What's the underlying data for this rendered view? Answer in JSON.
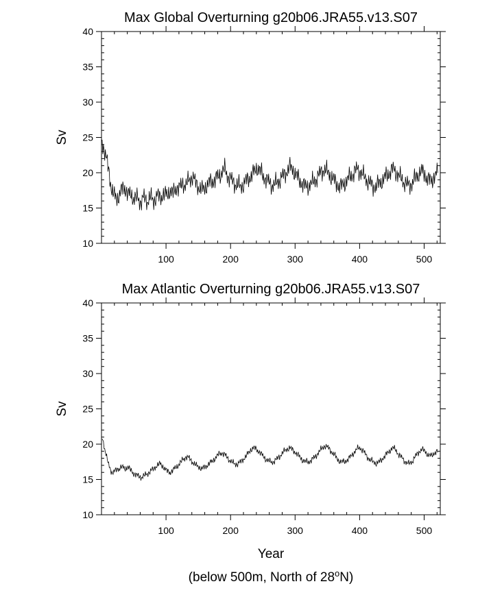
{
  "chart_data": [
    {
      "type": "line",
      "title": "Max Global Overturning g20b06.JRA55.v13.S07",
      "xlabel": "",
      "ylabel": "Sv",
      "xlim": [
        0,
        525
      ],
      "ylim": [
        10,
        40
      ],
      "x_ticks": [
        100,
        200,
        300,
        400,
        500
      ],
      "y_ticks": [
        10,
        15,
        20,
        25,
        30,
        35,
        40
      ],
      "grid": false,
      "series": [
        {
          "x_start": 1,
          "x_step": 5,
          "values": [
            24.5,
            22.5,
            20.5,
            17.5,
            16.5,
            16.5,
            17.5,
            18.0,
            16.8,
            17.0,
            16.2,
            16.5,
            15.8,
            16.5,
            16.0,
            16.5,
            16.0,
            16.8,
            16.5,
            17.0,
            16.8,
            17.5,
            17.0,
            18.0,
            17.8,
            18.5,
            18.2,
            19.0,
            19.5,
            18.5,
            18.0,
            17.5,
            18.0,
            18.5,
            18.8,
            19.0,
            19.5,
            20.0,
            20.5,
            19.5,
            19.0,
            18.5,
            18.3,
            18.0,
            18.5,
            19.0,
            19.5,
            20.0,
            20.8,
            20.2,
            19.5,
            19.0,
            18.5,
            18.2,
            18.5,
            19.0,
            19.5,
            20.0,
            20.8,
            20.5,
            19.8,
            19.0,
            18.5,
            18.0,
            18.2,
            18.5,
            19.0,
            19.5,
            20.2,
            20.5,
            20.0,
            19.5,
            18.8,
            18.3,
            18.0,
            18.5,
            19.0,
            19.5,
            20.0,
            20.5,
            20.2,
            19.5,
            19.0,
            18.5,
            18.0,
            18.2,
            18.5,
            19.0,
            19.5,
            20.0,
            20.5,
            20.2,
            19.5,
            19.0,
            18.5,
            18.2,
            18.5,
            19.2,
            19.8,
            20.2,
            19.8,
            19.0,
            18.8,
            19.5,
            20.0
          ]
        }
      ]
    },
    {
      "type": "line",
      "title": "Max Atlantic Overturning g20b06.JRA55.v13.S07",
      "xlabel": "Year",
      "ylabel": "Sv",
      "xlim": [
        0,
        525
      ],
      "ylim": [
        10,
        40
      ],
      "x_ticks": [
        100,
        200,
        300,
        400,
        500
      ],
      "y_ticks": [
        10,
        15,
        20,
        25,
        30,
        35,
        40
      ],
      "grid": false,
      "series": [
        {
          "x_start": 1,
          "x_step": 5,
          "values": [
            21.0,
            19.0,
            17.0,
            16.0,
            16.2,
            16.5,
            16.8,
            16.5,
            16.8,
            16.2,
            15.8,
            15.5,
            15.3,
            15.5,
            15.8,
            16.2,
            16.5,
            17.0,
            17.2,
            16.8,
            16.2,
            16.0,
            16.3,
            16.8,
            17.2,
            17.8,
            18.2,
            18.0,
            17.5,
            17.0,
            16.8,
            16.5,
            16.8,
            17.2,
            17.5,
            18.0,
            18.5,
            18.8,
            18.5,
            18.0,
            17.5,
            17.2,
            17.2,
            17.5,
            18.0,
            18.5,
            19.2,
            19.5,
            19.2,
            18.8,
            18.2,
            17.8,
            17.5,
            17.5,
            17.8,
            18.3,
            18.8,
            19.2,
            19.5,
            19.2,
            18.8,
            18.3,
            17.8,
            17.5,
            17.5,
            17.8,
            18.2,
            18.8,
            19.3,
            19.8,
            19.5,
            19.0,
            18.5,
            17.8,
            17.5,
            17.5,
            17.8,
            18.2,
            18.8,
            19.3,
            19.5,
            19.0,
            18.3,
            17.8,
            17.5,
            17.3,
            17.5,
            18.0,
            18.5,
            19.0,
            19.5,
            19.2,
            18.5,
            18.0,
            17.5,
            17.2,
            17.5,
            18.2,
            18.8,
            19.3,
            19.0,
            18.5,
            18.3,
            18.8,
            19.0
          ]
        }
      ]
    }
  ],
  "footnote": {
    "main": "(below 500m, North of 28",
    "superscript": "o",
    "end": "N)"
  }
}
